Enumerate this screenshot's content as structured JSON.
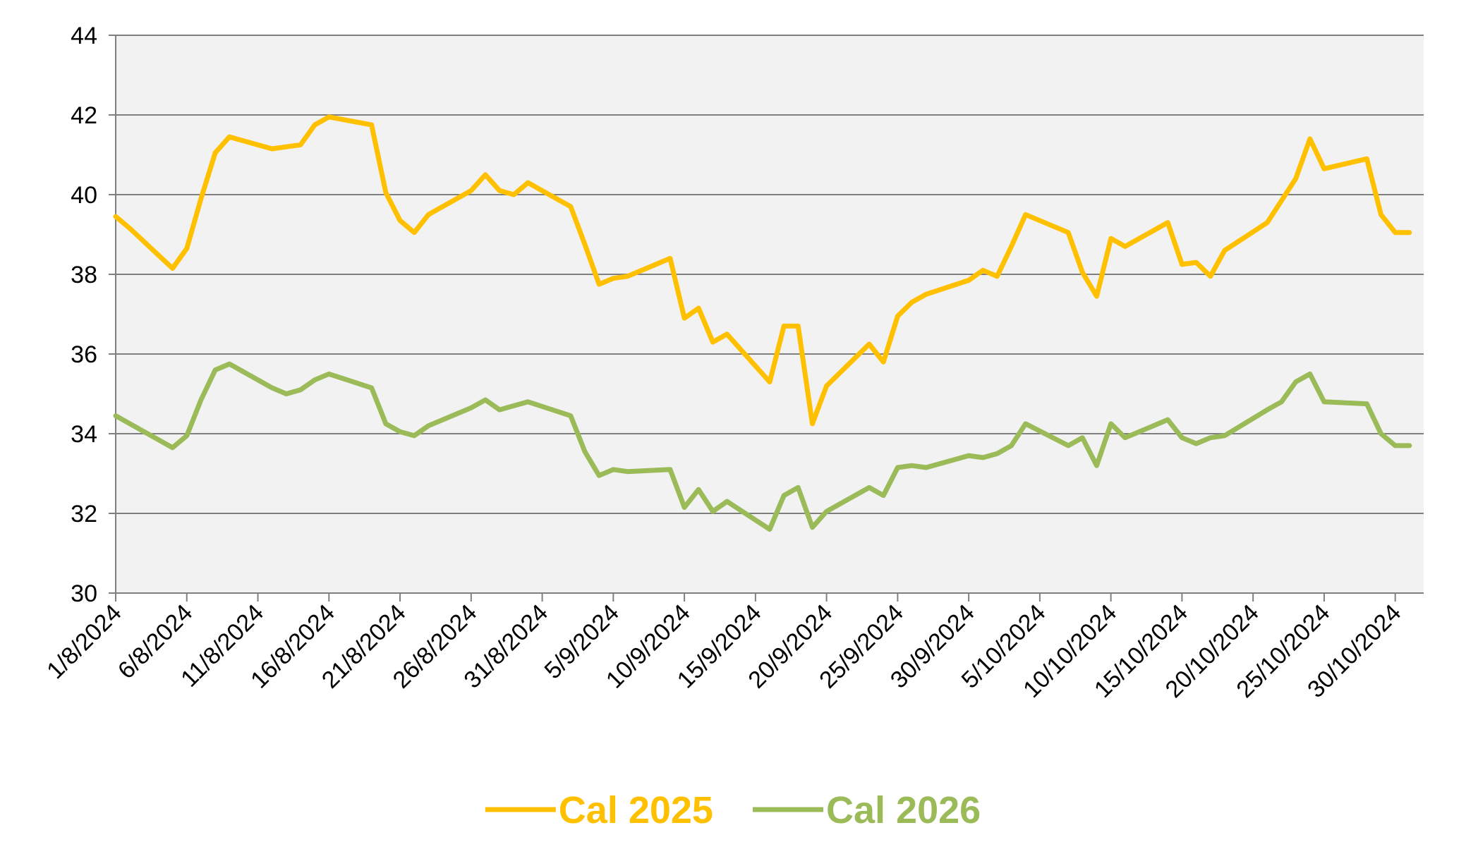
{
  "chart_data": {
    "type": "line",
    "title": "",
    "xlabel": "",
    "ylabel": "",
    "ylim": [
      30,
      44
    ],
    "yticks": [
      30,
      32,
      34,
      36,
      38,
      40,
      42,
      44
    ],
    "xlim": [
      "1/8/2024",
      "1/11/2024"
    ],
    "xtick_labels": [
      "1/8/2024",
      "6/8/2024",
      "11/8/2024",
      "16/8/2024",
      "21/8/2024",
      "26/8/2024",
      "31/8/2024",
      "5/9/2024",
      "10/9/2024",
      "15/9/2024",
      "20/9/2024",
      "25/9/2024",
      "30/9/2024",
      "5/10/2024",
      "10/10/2024",
      "15/10/2024",
      "20/10/2024",
      "25/10/2024",
      "30/10/2024"
    ],
    "grid": true,
    "plot_background": "#f2f2f2",
    "legend_position": "bottom",
    "series": [
      {
        "name": "Cal 2025",
        "color": "#ffc000",
        "x": [
          "1/8/2024",
          "2/8/2024",
          "5/8/2024",
          "6/8/2024",
          "7/8/2024",
          "8/8/2024",
          "9/8/2024",
          "12/8/2024",
          "13/8/2024",
          "14/8/2024",
          "15/8/2024",
          "16/8/2024",
          "19/8/2024",
          "20/8/2024",
          "21/8/2024",
          "22/8/2024",
          "23/8/2024",
          "26/8/2024",
          "27/8/2024",
          "28/8/2024",
          "29/8/2024",
          "30/8/2024",
          "2/9/2024",
          "3/9/2024",
          "4/9/2024",
          "5/9/2024",
          "6/9/2024",
          "9/9/2024",
          "10/9/2024",
          "11/9/2024",
          "12/9/2024",
          "13/9/2024",
          "16/9/2024",
          "17/9/2024",
          "18/9/2024",
          "19/9/2024",
          "20/9/2024",
          "23/9/2024",
          "24/9/2024",
          "25/9/2024",
          "26/9/2024",
          "27/9/2024",
          "30/9/2024",
          "1/10/2024",
          "2/10/2024",
          "3/10/2024",
          "4/10/2024",
          "7/10/2024",
          "8/10/2024",
          "9/10/2024",
          "10/10/2024",
          "11/10/2024",
          "14/10/2024",
          "15/10/2024",
          "16/10/2024",
          "17/10/2024",
          "18/10/2024",
          "21/10/2024",
          "22/10/2024",
          "23/10/2024",
          "24/10/2024",
          "25/10/2024",
          "28/10/2024",
          "29/10/2024",
          "30/10/2024",
          "31/10/2024"
        ],
        "values": [
          39.45,
          39.15,
          38.15,
          38.65,
          39.9,
          41.05,
          41.45,
          41.15,
          41.2,
          41.25,
          41.75,
          41.95,
          41.75,
          40.05,
          39.35,
          39.05,
          39.5,
          40.1,
          40.5,
          40.1,
          40.0,
          40.3,
          39.7,
          38.75,
          37.75,
          37.9,
          37.95,
          38.4,
          36.9,
          37.15,
          36.3,
          36.5,
          35.3,
          36.7,
          36.7,
          34.25,
          35.2,
          36.25,
          35.8,
          36.95,
          37.3,
          37.5,
          37.85,
          38.1,
          37.95,
          38.7,
          39.5,
          39.05,
          38.05,
          37.45,
          38.9,
          38.7,
          39.3,
          38.25,
          38.3,
          37.95,
          38.6,
          39.3,
          39.85,
          40.4,
          41.4,
          40.65,
          40.9,
          39.5,
          39.05,
          39.05
        ]
      },
      {
        "name": "Cal 2026",
        "color": "#9bbb59",
        "x": [
          "1/8/2024",
          "2/8/2024",
          "5/8/2024",
          "6/8/2024",
          "7/8/2024",
          "8/8/2024",
          "9/8/2024",
          "12/8/2024",
          "13/8/2024",
          "14/8/2024",
          "15/8/2024",
          "16/8/2024",
          "19/8/2024",
          "20/8/2024",
          "21/8/2024",
          "22/8/2024",
          "23/8/2024",
          "26/8/2024",
          "27/8/2024",
          "28/8/2024",
          "29/8/2024",
          "30/8/2024",
          "2/9/2024",
          "3/9/2024",
          "4/9/2024",
          "5/9/2024",
          "6/9/2024",
          "9/9/2024",
          "10/9/2024",
          "11/9/2024",
          "12/9/2024",
          "13/9/2024",
          "16/9/2024",
          "17/9/2024",
          "18/9/2024",
          "19/9/2024",
          "20/9/2024",
          "23/9/2024",
          "24/9/2024",
          "25/9/2024",
          "26/9/2024",
          "27/9/2024",
          "30/9/2024",
          "1/10/2024",
          "2/10/2024",
          "3/10/2024",
          "4/10/2024",
          "7/10/2024",
          "8/10/2024",
          "9/10/2024",
          "10/10/2024",
          "11/10/2024",
          "14/10/2024",
          "15/10/2024",
          "16/10/2024",
          "17/10/2024",
          "18/10/2024",
          "21/10/2024",
          "22/10/2024",
          "23/10/2024",
          "24/10/2024",
          "25/10/2024",
          "28/10/2024",
          "29/10/2024",
          "30/10/2024",
          "31/10/2024"
        ],
        "values": [
          34.45,
          34.25,
          33.65,
          33.95,
          34.85,
          35.6,
          35.75,
          35.15,
          35.0,
          35.1,
          35.35,
          35.5,
          35.15,
          34.25,
          34.05,
          33.95,
          34.2,
          34.65,
          34.85,
          34.6,
          34.7,
          34.8,
          34.45,
          33.55,
          32.95,
          33.1,
          33.05,
          33.1,
          32.15,
          32.6,
          32.05,
          32.3,
          31.6,
          32.45,
          32.65,
          31.65,
          32.05,
          32.65,
          32.45,
          33.15,
          33.2,
          33.15,
          33.45,
          33.4,
          33.5,
          33.7,
          34.25,
          33.7,
          33.9,
          33.2,
          34.25,
          33.9,
          34.35,
          33.9,
          33.75,
          33.9,
          33.95,
          34.6,
          34.8,
          35.3,
          35.5,
          34.8,
          34.75,
          34.0,
          33.7,
          33.7
        ]
      }
    ]
  }
}
